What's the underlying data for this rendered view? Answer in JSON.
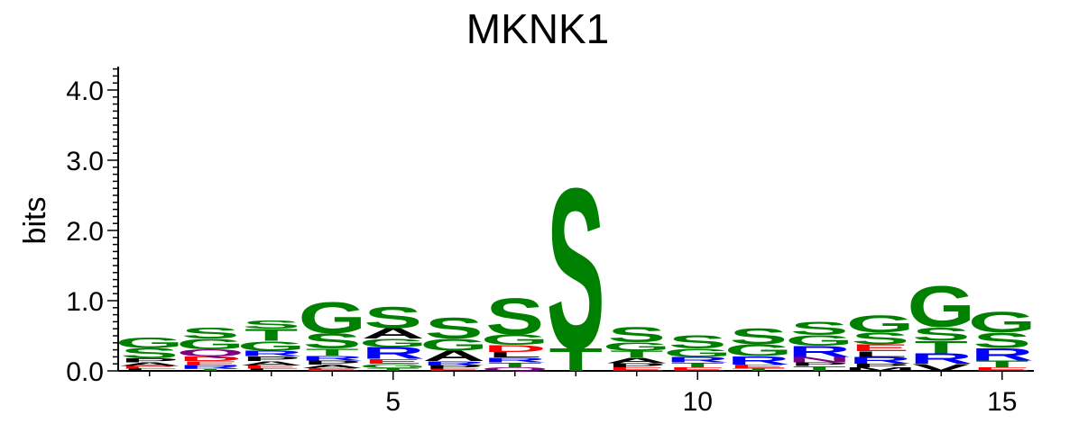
{
  "chart_data": {
    "type": "sequence-logo",
    "title": "MKNK1",
    "ylabel": "bits",
    "xlabel": "",
    "ylim": [
      0,
      4.3
    ],
    "y_ticks": [
      "0.0",
      "1.0",
      "2.0",
      "3.0",
      "4.0"
    ],
    "x_ticks": [
      "5",
      "10",
      "15"
    ],
    "x_tick_positions": [
      5,
      10,
      15
    ],
    "positions": [
      {
        "pos": 1,
        "stack": [
          {
            "l": "L",
            "h": 0.03
          },
          {
            "l": "E",
            "h": 0.04
          },
          {
            "l": "A",
            "h": 0.05
          },
          {
            "l": "P",
            "h": 0.06
          },
          {
            "l": "S",
            "h": 0.15
          },
          {
            "l": "G",
            "h": 0.15
          }
        ]
      },
      {
        "pos": 2,
        "stack": [
          {
            "l": "T",
            "h": 0.03
          },
          {
            "l": "R",
            "h": 0.05
          },
          {
            "l": "E",
            "h": 0.06
          },
          {
            "l": "D",
            "h": 0.07
          },
          {
            "l": "Q",
            "h": 0.1
          },
          {
            "l": "G",
            "h": 0.15
          },
          {
            "l": "S",
            "h": 0.16
          }
        ]
      },
      {
        "pos": 3,
        "stack": [
          {
            "l": "L",
            "h": 0.03
          },
          {
            "l": "E",
            "h": 0.05
          },
          {
            "l": "A",
            "h": 0.06
          },
          {
            "l": "P",
            "h": 0.07
          },
          {
            "l": "R",
            "h": 0.08
          },
          {
            "l": "G",
            "h": 0.14
          },
          {
            "l": "T",
            "h": 0.17
          },
          {
            "l": "S",
            "h": 0.12
          }
        ]
      },
      {
        "pos": 4,
        "stack": [
          {
            "l": "E",
            "h": 0.04
          },
          {
            "l": "A",
            "h": 0.05
          },
          {
            "l": "P",
            "h": 0.06
          },
          {
            "l": "R",
            "h": 0.07
          },
          {
            "l": "T",
            "h": 0.1
          },
          {
            "l": "S",
            "h": 0.22
          },
          {
            "l": "G",
            "h": 0.45
          }
        ]
      },
      {
        "pos": 5,
        "stack": [
          {
            "l": "T",
            "h": 0.04
          },
          {
            "l": "G",
            "h": 0.06
          },
          {
            "l": "E",
            "h": 0.07
          },
          {
            "l": "R",
            "h": 0.17
          },
          {
            "l": "G",
            "h": 0.12
          },
          {
            "l": "A",
            "h": 0.15
          },
          {
            "l": "S",
            "h": 0.32
          }
        ]
      },
      {
        "pos": 6,
        "stack": [
          {
            "l": "E",
            "h": 0.03
          },
          {
            "l": "P",
            "h": 0.05
          },
          {
            "l": "R",
            "h": 0.06
          },
          {
            "l": "A",
            "h": 0.15
          },
          {
            "l": "G",
            "h": 0.17
          },
          {
            "l": "S",
            "h": 0.31
          }
        ]
      },
      {
        "pos": 7,
        "stack": [
          {
            "l": "Q",
            "h": 0.05
          },
          {
            "l": "T",
            "h": 0.07
          },
          {
            "l": "R",
            "h": 0.07
          },
          {
            "l": "L",
            "h": 0.08
          },
          {
            "l": "D",
            "h": 0.1
          },
          {
            "l": "G",
            "h": 0.15
          },
          {
            "l": "S",
            "h": 0.53
          }
        ]
      },
      {
        "pos": 8,
        "stack": [
          {
            "l": "T",
            "h": 0.33
          },
          {
            "l": "S",
            "h": 2.35
          }
        ]
      },
      {
        "pos": 9,
        "stack": [
          {
            "l": "E",
            "h": 0.05
          },
          {
            "l": "P",
            "h": 0.06
          },
          {
            "l": "A",
            "h": 0.08
          },
          {
            "l": "T",
            "h": 0.1
          },
          {
            "l": "G",
            "h": 0.12
          },
          {
            "l": "S",
            "h": 0.22
          }
        ]
      },
      {
        "pos": 10,
        "stack": [
          {
            "l": "E",
            "h": 0.05
          },
          {
            "l": "T",
            "h": 0.07
          },
          {
            "l": "R",
            "h": 0.08
          },
          {
            "l": "G",
            "h": 0.12
          },
          {
            "l": "S",
            "h": 0.2
          }
        ]
      },
      {
        "pos": 11,
        "stack": [
          {
            "l": "T",
            "h": 0.04
          },
          {
            "l": "E",
            "h": 0.05
          },
          {
            "l": "R",
            "h": 0.12
          },
          {
            "l": "G",
            "h": 0.17
          },
          {
            "l": "S",
            "h": 0.23
          }
        ]
      },
      {
        "pos": 12,
        "stack": [
          {
            "l": "T",
            "h": 0.07
          },
          {
            "l": "P",
            "h": 0.05
          },
          {
            "l": "N",
            "h": 0.08
          },
          {
            "l": "R",
            "h": 0.16
          },
          {
            "l": "G",
            "h": 0.15
          },
          {
            "l": "S",
            "h": 0.2
          }
        ]
      },
      {
        "pos": 13,
        "stack": [
          {
            "l": "M",
            "h": 0.05
          },
          {
            "l": "P",
            "h": 0.05
          },
          {
            "l": "R",
            "h": 0.1
          },
          {
            "l": "L",
            "h": 0.08
          },
          {
            "l": "E",
            "h": 0.1
          },
          {
            "l": "S",
            "h": 0.17
          },
          {
            "l": "G",
            "h": 0.25
          }
        ]
      },
      {
        "pos": 14,
        "stack": [
          {
            "l": "V",
            "h": 0.1
          },
          {
            "l": "R",
            "h": 0.15
          },
          {
            "l": "T",
            "h": 0.18
          },
          {
            "l": "S",
            "h": 0.2
          },
          {
            "l": "G",
            "h": 0.6
          }
        ]
      },
      {
        "pos": 15,
        "stack": [
          {
            "l": "E",
            "h": 0.05
          },
          {
            "l": "T",
            "h": 0.1
          },
          {
            "l": "R",
            "h": 0.18
          },
          {
            "l": "S",
            "h": 0.22
          },
          {
            "l": "G",
            "h": 0.3
          }
        ]
      }
    ],
    "colors": {
      "G": "#008000",
      "S": "#008000",
      "T": "#008000",
      "Y": "#008000",
      "C": "#008000",
      "N": "#800080",
      "Q": "#800080",
      "K": "#0000ff",
      "R": "#0000ff",
      "H": "#0000ff",
      "D": "#ff0000",
      "E": "#ff0000",
      "A": "#000000",
      "V": "#000000",
      "L": "#000000",
      "I": "#000000",
      "P": "#000000",
      "W": "#000000",
      "F": "#000000",
      "M": "#000000"
    },
    "grid": false
  }
}
